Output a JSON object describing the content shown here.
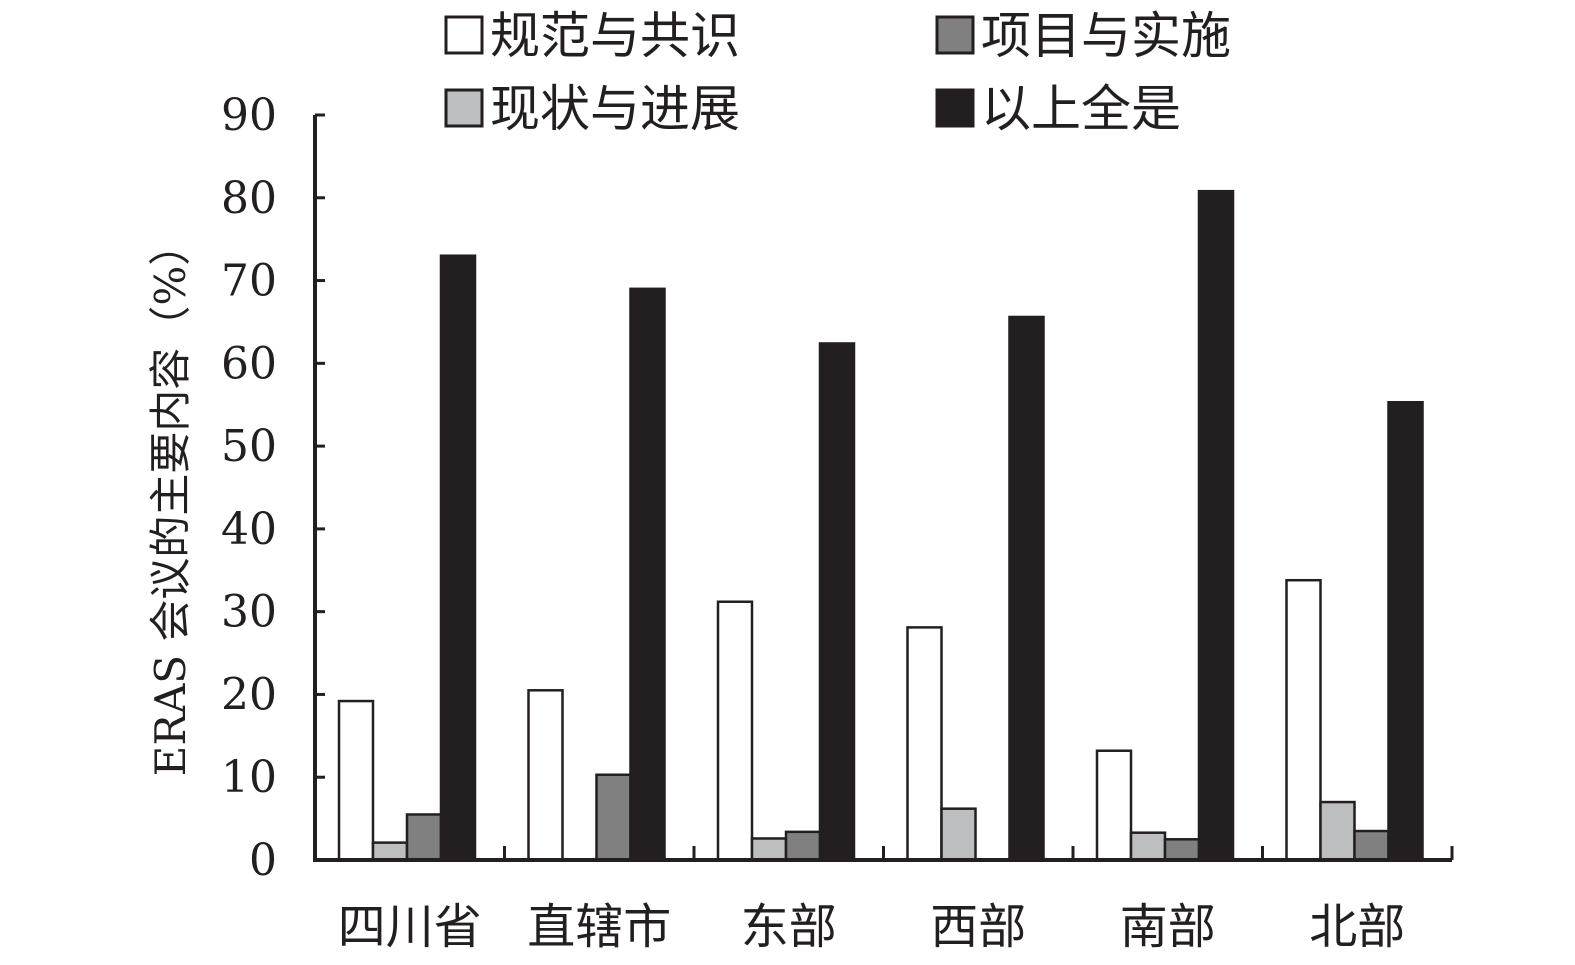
{
  "chart_data": {
    "type": "bar",
    "title": "",
    "xlabel": "",
    "ylabel": "ERAS 会议的主要内容（%）",
    "ylim": [
      0,
      90
    ],
    "yticks": [
      0,
      10,
      20,
      30,
      40,
      50,
      60,
      70,
      80,
      90
    ],
    "grid": false,
    "legend_position": "top",
    "categories": [
      "四川省",
      "直辖市",
      "东部",
      "西部",
      "南部",
      "北部"
    ],
    "series": [
      {
        "name": "规范与共识",
        "color": "#ffffff",
        "values": [
          19.2,
          20.5,
          31.2,
          28.1,
          13.2,
          33.8
        ]
      },
      {
        "name": "现状与进展",
        "color": "#bcbec0",
        "values": [
          2.1,
          0,
          2.6,
          6.2,
          3.3,
          7.0
        ]
      },
      {
        "name": "项目与实施",
        "color": "#808080",
        "values": [
          5.5,
          10.3,
          3.4,
          0,
          2.5,
          3.5
        ]
      },
      {
        "name": "以上全是",
        "color": "#231f20",
        "values": [
          73.0,
          69.0,
          62.4,
          65.6,
          80.8,
          55.3
        ]
      }
    ],
    "legend_order": [
      0,
      2,
      1,
      3
    ]
  }
}
